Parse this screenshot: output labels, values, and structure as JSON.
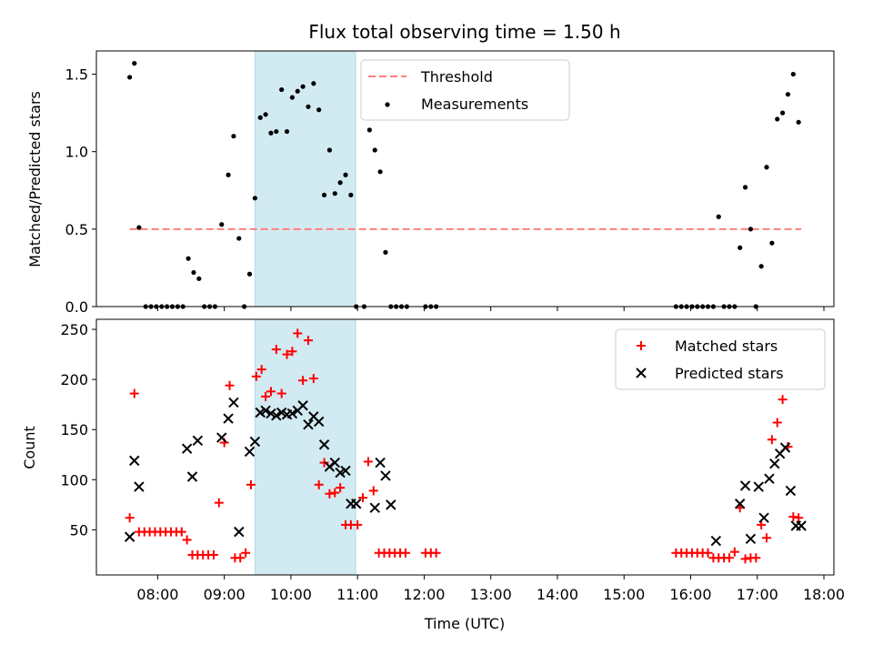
{
  "chart_data": [
    {
      "type": "scatter",
      "title": "Flux total observing time = 1.50 h",
      "xlabel": "",
      "ylabel": "Matched/Predicted stars",
      "xlim": [
        7.08,
        18.15
      ],
      "ylim": [
        0,
        1.65
      ],
      "yticks": [
        0,
        0.5,
        1.0,
        1.5
      ],
      "ytick_labels": [
        "0.0",
        "0.5",
        "1.0",
        "1.5"
      ],
      "shaded_span": {
        "x0": 9.46,
        "x1": 10.97,
        "color": "#add8e6"
      },
      "threshold": {
        "name": "Threshold",
        "y": 0.5,
        "x0": 7.58,
        "x1": 17.66,
        "color": "#ff7f7f"
      },
      "legend_position": "top-center",
      "series": [
        {
          "name": "Measurements",
          "marker": "dot",
          "color": "#000000",
          "x": [
            7.58,
            7.65,
            7.72,
            7.82,
            7.9,
            7.98,
            8.06,
            8.14,
            8.22,
            8.3,
            8.38,
            8.46,
            8.54,
            8.62,
            8.7,
            8.78,
            8.86,
            8.96,
            9.06,
            9.14,
            9.22,
            9.3,
            9.38,
            9.46,
            9.54,
            9.62,
            9.7,
            9.78,
            9.86,
            9.94,
            10.02,
            10.1,
            10.18,
            10.26,
            10.34,
            10.42,
            10.5,
            10.58,
            10.66,
            10.74,
            10.82,
            10.9,
            10.98,
            11.1,
            11.18,
            11.26,
            11.34,
            11.42,
            11.5,
            11.58,
            11.66,
            11.74,
            12.02,
            12.1,
            12.18,
            15.78,
            15.86,
            15.94,
            16.02,
            16.1,
            16.18,
            16.26,
            16.34,
            16.42,
            16.5,
            16.58,
            16.66,
            16.74,
            16.82,
            16.9,
            16.98,
            17.06,
            17.14,
            17.22,
            17.3,
            17.38,
            17.46,
            17.54,
            17.62
          ],
          "y": [
            1.48,
            1.57,
            0.51,
            0.0,
            0.0,
            0.0,
            0.0,
            0.0,
            0.0,
            0.0,
            0.0,
            0.31,
            0.22,
            0.18,
            0.0,
            0.0,
            0.0,
            0.53,
            0.85,
            1.1,
            0.44,
            0.0,
            0.21,
            0.7,
            1.22,
            1.24,
            1.12,
            1.13,
            1.4,
            1.13,
            1.35,
            1.39,
            1.42,
            1.29,
            1.44,
            1.27,
            0.72,
            1.01,
            0.73,
            0.8,
            0.85,
            0.72,
            0.0,
            0.0,
            1.14,
            1.01,
            0.87,
            0.35,
            0.0,
            0.0,
            0.0,
            0.0,
            0.0,
            0.0,
            0.0,
            0.0,
            0.0,
            0.0,
            0.0,
            0.0,
            0.0,
            0.0,
            0.0,
            0.58,
            0.0,
            0.0,
            0.0,
            0.38,
            0.77,
            0.5,
            0.0,
            0.26,
            0.9,
            0.41,
            1.21,
            1.25,
            1.37,
            1.5,
            1.19
          ]
        }
      ]
    },
    {
      "type": "scatter",
      "title": "",
      "xlabel": "Time (UTC)",
      "ylabel": "Count",
      "xlim": [
        7.08,
        18.15
      ],
      "ylim": [
        5,
        260
      ],
      "yticks": [
        50,
        100,
        150,
        200,
        250
      ],
      "ytick_labels": [
        "50",
        "100",
        "150",
        "200",
        "250"
      ],
      "xticks": [
        8,
        9,
        10,
        11,
        12,
        13,
        14,
        15,
        16,
        17,
        18
      ],
      "xtick_labels": [
        "08:00",
        "09:00",
        "10:00",
        "11:00",
        "12:00",
        "13:00",
        "14:00",
        "15:00",
        "16:00",
        "17:00",
        "18:00"
      ],
      "shaded_span": {
        "x0": 9.46,
        "x1": 10.97,
        "color": "#add8e6"
      },
      "legend_position": "top-right",
      "series": [
        {
          "name": "Matched stars",
          "marker": "plus",
          "color": "#ff0000",
          "x": [
            7.58,
            7.65,
            7.72,
            7.8,
            7.88,
            7.96,
            8.04,
            8.12,
            8.2,
            8.28,
            8.36,
            8.44,
            8.52,
            8.6,
            8.68,
            8.76,
            8.84,
            8.92,
            9.0,
            9.08,
            9.16,
            9.24,
            9.32,
            9.4,
            9.48,
            9.56,
            9.62,
            9.7,
            9.78,
            9.86,
            9.94,
            10.02,
            10.1,
            10.18,
            10.26,
            10.34,
            10.42,
            10.5,
            10.58,
            10.66,
            10.74,
            10.82,
            10.9,
            11.0,
            11.08,
            11.16,
            11.24,
            11.32,
            11.4,
            11.48,
            11.56,
            11.64,
            11.72,
            12.02,
            12.1,
            12.18,
            15.78,
            15.86,
            15.94,
            16.02,
            16.1,
            16.18,
            16.26,
            16.34,
            16.42,
            16.5,
            16.58,
            16.66,
            16.74,
            16.82,
            16.9,
            16.98,
            17.06,
            17.14,
            17.22,
            17.3,
            17.38,
            17.46,
            17.54,
            17.62
          ],
          "y": [
            62,
            186,
            48,
            48,
            48,
            48,
            48,
            48,
            48,
            48,
            48,
            40,
            25,
            25,
            25,
            25,
            25,
            77,
            137,
            194,
            22,
            22,
            27,
            95,
            203,
            210,
            183,
            188,
            230,
            186,
            225,
            228,
            246,
            199,
            239,
            201,
            95,
            117,
            86,
            87,
            92,
            55,
            55,
            55,
            82,
            118,
            89,
            27,
            27,
            27,
            27,
            27,
            27,
            27,
            27,
            27,
            27,
            27,
            27,
            27,
            27,
            27,
            27,
            22,
            22,
            22,
            22,
            28,
            72,
            21,
            22,
            22,
            55,
            42,
            140,
            157,
            180,
            133,
            63,
            62
          ]
        },
        {
          "name": "Predicted stars",
          "marker": "x",
          "color": "#000000",
          "x": [
            7.58,
            7.65,
            7.72,
            8.44,
            8.52,
            8.6,
            8.96,
            9.06,
            9.14,
            9.22,
            9.38,
            9.46,
            9.54,
            9.62,
            9.7,
            9.78,
            9.86,
            9.94,
            10.02,
            10.1,
            10.18,
            10.26,
            10.34,
            10.42,
            10.5,
            10.58,
            10.66,
            10.74,
            10.82,
            10.9,
            10.98,
            11.26,
            11.34,
            11.42,
            11.5,
            16.38,
            16.74,
            16.82,
            16.9,
            17.02,
            17.1,
            17.18,
            17.26,
            17.34,
            17.42,
            17.5,
            17.58,
            17.66
          ],
          "y": [
            43,
            119,
            93,
            131,
            103,
            139,
            142,
            161,
            177,
            48,
            128,
            138,
            167,
            169,
            166,
            164,
            167,
            165,
            166,
            169,
            174,
            155,
            163,
            158,
            135,
            113,
            117,
            107,
            109,
            76,
            76,
            72,
            117,
            104,
            75,
            39,
            76,
            94,
            41,
            93,
            62,
            101,
            116,
            126,
            132,
            89,
            54,
            54
          ]
        }
      ]
    }
  ]
}
